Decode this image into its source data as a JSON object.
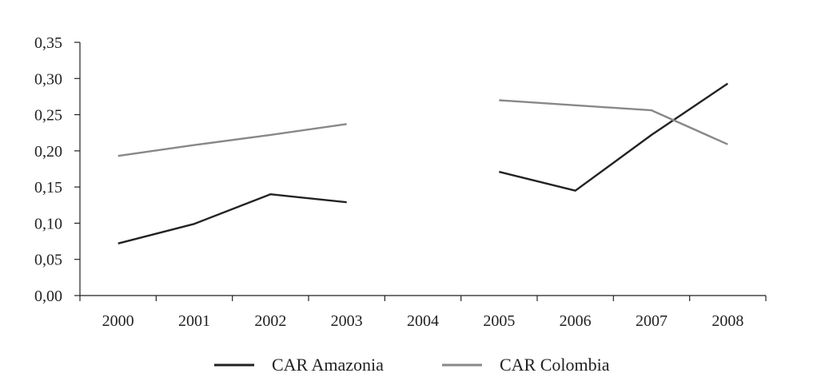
{
  "chart_data": {
    "type": "line",
    "title": "",
    "xlabel": "",
    "ylabel": "",
    "categories": [
      "2000",
      "2001",
      "2002",
      "2003",
      "2004",
      "2005",
      "2006",
      "2007",
      "2008"
    ],
    "y_ticks": [
      "0,00",
      "0,05",
      "0,10",
      "0,15",
      "0,20",
      "0,25",
      "0,30",
      "0,35"
    ],
    "ylim": [
      0,
      0.35
    ],
    "grid": false,
    "legend_position": "bottom",
    "series": [
      {
        "name": "CAR Amazonia",
        "color": "#222222",
        "values": [
          0.072,
          0.099,
          0.14,
          0.129,
          null,
          0.171,
          0.145,
          0.222,
          0.293
        ]
      },
      {
        "name": "CAR Colombia",
        "color": "#888888",
        "values": [
          0.193,
          0.208,
          0.222,
          0.237,
          null,
          0.27,
          0.263,
          0.256,
          0.209
        ]
      }
    ]
  }
}
